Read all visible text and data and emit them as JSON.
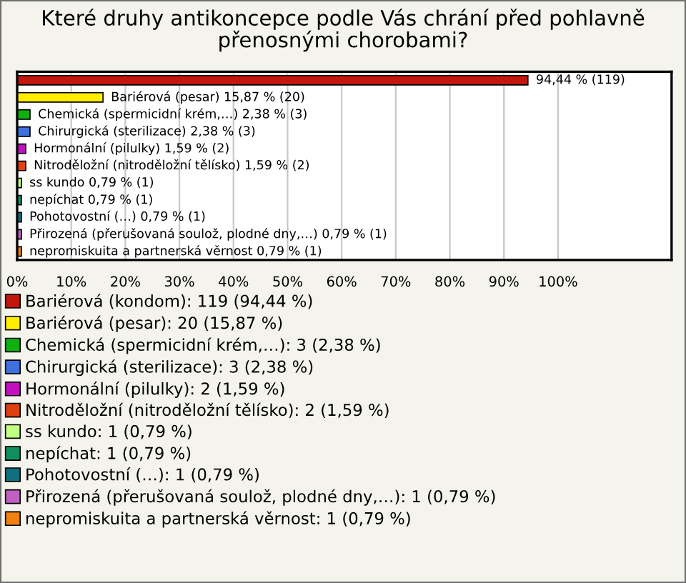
{
  "chart_data": {
    "type": "bar",
    "orientation": "horizontal",
    "title": "Které druhy antikoncepce podle Vás chrání před pohlavně\npřenosnými chorobami?",
    "categories": [
      null,
      null,
      null,
      null,
      null,
      null,
      null,
      null,
      null,
      null,
      null
    ],
    "series": [
      {
        "name": "Bariérová (kondom): 119 (94,44 %)",
        "color": "#c0180c",
        "values": [
          94.44,
          null,
          null,
          null,
          null,
          null,
          null,
          null,
          null,
          null,
          null
        ],
        "value_labels": [
          "94,44 % (119)",
          null,
          null,
          null,
          null,
          null,
          null,
          null,
          null,
          null,
          null
        ]
      },
      {
        "name": "Bariérová (pesar): 20 (15,87 %)",
        "color": "#ffee00",
        "values": [
          null,
          15.87,
          null,
          null,
          null,
          null,
          null,
          null,
          null,
          null,
          null
        ],
        "value_labels": [
          null,
          "Bariérová (pesar) 15,87 % (20)",
          null,
          null,
          null,
          null,
          null,
          null,
          null,
          null,
          null
        ]
      },
      {
        "name": "Chemická (spermicidní krém,…): 3 (2,38 %)",
        "color": "#10b010",
        "values": [
          null,
          null,
          2.38,
          null,
          null,
          null,
          null,
          null,
          null,
          null,
          null
        ],
        "value_labels": [
          null,
          null,
          "Chemická (spermicidní krém,…) 2,38 % (3)",
          null,
          null,
          null,
          null,
          null,
          null,
          null,
          null
        ]
      },
      {
        "name": "Chirurgická (sterilizace): 3 (2,38 %)",
        "color": "#4070e0",
        "values": [
          null,
          null,
          null,
          2.38,
          null,
          null,
          null,
          null,
          null,
          null,
          null
        ],
        "value_labels": [
          null,
          null,
          null,
          "Chirurgická (sterilizace) 2,38 % (3)",
          null,
          null,
          null,
          null,
          null,
          null,
          null
        ]
      },
      {
        "name": "Hormonální (pilulky): 2 (1,59 %)",
        "color": "#c010c0",
        "values": [
          null,
          null,
          null,
          null,
          1.59,
          null,
          null,
          null,
          null,
          null,
          null
        ],
        "value_labels": [
          null,
          null,
          null,
          null,
          "Hormonální (pilulky) 1,59 % (2)",
          null,
          null,
          null,
          null,
          null,
          null
        ]
      },
      {
        "name": "Nitroděložní (nitroděložní tělísko): 2 (1,59 %)",
        "color": "#e04010",
        "values": [
          null,
          null,
          null,
          null,
          null,
          1.59,
          null,
          null,
          null,
          null,
          null
        ],
        "value_labels": [
          null,
          null,
          null,
          null,
          null,
          "Nitroděložní (nitroděložní tělísko) 1,59 % (2)",
          null,
          null,
          null,
          null,
          null
        ]
      },
      {
        "name": "ss kundo: 1 (0,79 %)",
        "color": "#c0ff80",
        "values": [
          null,
          null,
          null,
          null,
          null,
          null,
          0.79,
          null,
          null,
          null,
          null
        ],
        "value_labels": [
          null,
          null,
          null,
          null,
          null,
          null,
          "ss kundo 0,79 % (1)",
          null,
          null,
          null,
          null
        ]
      },
      {
        "name": "nepíchat: 1 (0,79 %)",
        "color": "#109060",
        "values": [
          null,
          null,
          null,
          null,
          null,
          null,
          null,
          0.79,
          null,
          null,
          null
        ],
        "value_labels": [
          null,
          null,
          null,
          null,
          null,
          null,
          null,
          "nepíchat 0,79 % (1)",
          null,
          null,
          null
        ]
      },
      {
        "name": "Pohotovostní (…): 1 (0,79 %)",
        "color": "#107080",
        "values": [
          null,
          null,
          null,
          null,
          null,
          null,
          null,
          null,
          0.79,
          null,
          null
        ],
        "value_labels": [
          null,
          null,
          null,
          null,
          null,
          null,
          null,
          null,
          "Pohotovostní (…) 0,79 % (1)",
          null,
          null
        ]
      },
      {
        "name": "Přirozená (přerušovaná soulož, plodné dny,…): 1 (0,79 %)",
        "color": "#c060c0",
        "values": [
          null,
          null,
          null,
          null,
          null,
          null,
          null,
          null,
          null,
          0.79,
          null
        ],
        "value_labels": [
          null,
          null,
          null,
          null,
          null,
          null,
          null,
          null,
          null,
          "Přirozená (přerušovaná soulož, plodné dny,…) 0,79 % (1)",
          null
        ]
      },
      {
        "name": "nepromiskuita a partnerská věrnost: 1 (0,79 %)",
        "color": "#f08010",
        "values": [
          null,
          null,
          null,
          null,
          null,
          null,
          null,
          null,
          null,
          null,
          0.79
        ],
        "value_labels": [
          null,
          null,
          null,
          null,
          null,
          null,
          null,
          null,
          null,
          null,
          "nepromiskuita a partnerská věrnost 0,79 % (1)"
        ]
      }
    ],
    "xlim": [
      0,
      121
    ],
    "xticks": [
      {
        "value": 0,
        "label": "0%"
      },
      {
        "value": 10,
        "label": "10%"
      },
      {
        "value": 20,
        "label": "20%"
      },
      {
        "value": 30,
        "label": "30%"
      },
      {
        "value": 40,
        "label": "40%"
      },
      {
        "value": 50,
        "label": "50%"
      },
      {
        "value": 60,
        "label": "60%"
      },
      {
        "value": 70,
        "label": "70%"
      },
      {
        "value": 80,
        "label": "80%"
      },
      {
        "value": 90,
        "label": "90%"
      },
      {
        "value": 100,
        "label": "100%"
      }
    ],
    "grid": "x",
    "tick_labels": "x",
    "legend": "bottom"
  }
}
